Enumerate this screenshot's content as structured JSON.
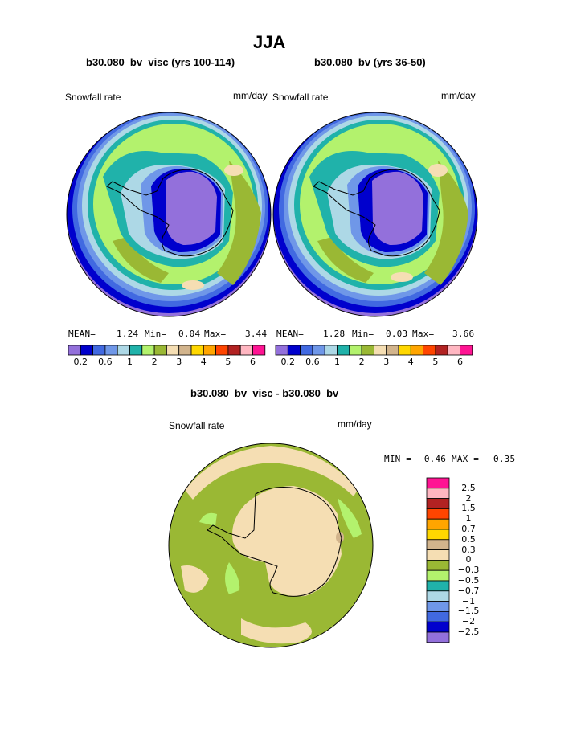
{
  "title": "JJA",
  "colors": {
    "scale": [
      "#9370db",
      "#0000cd",
      "#4169e1",
      "#6f97e8",
      "#add8e6",
      "#20b2aa",
      "#b3f26d",
      "#9ab834",
      "#f5deb3",
      "#d2b48c",
      "#ffd700",
      "#ffa500",
      "#ff4500",
      "#b22222",
      "#ffb6c1",
      "#ff1493"
    ],
    "diff_scale": [
      "#9370db",
      "#0000cd",
      "#4169e1",
      "#6f97e8",
      "#add8e6",
      "#20b2aa",
      "#b3f26d",
      "#9ab834",
      "#f5deb3",
      "#d2b48c",
      "#ffd700",
      "#ffa500",
      "#ff4500",
      "#b22222",
      "#ffb6c1",
      "#ff1493"
    ]
  },
  "left_panel": {
    "title": "b30.080_bv_visc (yrs 100-114)",
    "variable": "Snowfall rate",
    "units": "mm/day",
    "mean_label": "MEAN=",
    "mean": "1.24",
    "min_label": "Min=",
    "min": "0.04",
    "max_label": "Max=",
    "max": "3.44",
    "colorbar_labels": [
      "0.2",
      "0.6",
      "1",
      "2",
      "3",
      "4",
      "5",
      "6"
    ]
  },
  "right_panel": {
    "title": "b30.080_bv (yrs 36-50)",
    "variable": "Snowfall rate",
    "units": "mm/day",
    "mean_label": "MEAN=",
    "mean": "1.28",
    "min_label": "Min=",
    "min": "0.03",
    "max_label": "Max=",
    "max": "3.66",
    "colorbar_labels": [
      "0.2",
      "0.6",
      "1",
      "2",
      "3",
      "4",
      "5",
      "6"
    ]
  },
  "diff_panel": {
    "title": "b30.080_bv_visc - b30.080_bv",
    "variable": "Snowfall rate",
    "units": "mm/day",
    "min_label": "MIN =",
    "min": "−0.46",
    "max_label": "MAX =",
    "max": "0.35",
    "colorbar_labels": [
      "2.5",
      "2",
      "1.5",
      "1",
      "0.7",
      "0.5",
      "0.3",
      "0",
      "−0.3",
      "−0.5",
      "−0.7",
      "−1",
      "−1.5",
      "−2",
      "−2.5"
    ]
  }
}
